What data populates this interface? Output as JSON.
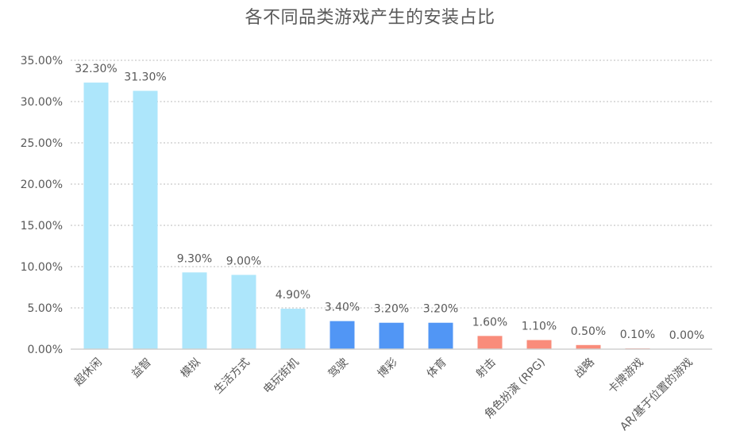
{
  "chart_data": {
    "type": "bar",
    "title": "各不同品类游戏产生的安装占比",
    "xlabel": "",
    "ylabel": "",
    "ylim": [
      0,
      35
    ],
    "y_ticks": [
      "0.00%",
      "5.00%",
      "10.00%",
      "15.00%",
      "20.00%",
      "25.00%",
      "30.00%",
      "35.00%"
    ],
    "y_tick_values": [
      0,
      5,
      10,
      15,
      20,
      25,
      30,
      35
    ],
    "grid": true,
    "legend": "none",
    "categories": [
      "超休闲",
      "益智",
      "模拟",
      "生活方式",
      "电玩街机",
      "驾驶",
      "博彩",
      "体育",
      "射击",
      "角色扮演 (RPG)",
      "战略",
      "卡牌游戏",
      "AR/基于位置的游戏"
    ],
    "values": [
      32.3,
      31.3,
      9.3,
      9.0,
      4.9,
      3.4,
      3.2,
      3.2,
      1.6,
      1.1,
      0.5,
      0.1,
      0.0
    ],
    "value_labels": [
      "32.30%",
      "31.30%",
      "9.30%",
      "9.00%",
      "4.90%",
      "3.40%",
      "3.20%",
      "3.20%",
      "1.60%",
      "1.10%",
      "0.50%",
      "0.10%",
      "0.00%"
    ],
    "bar_colors": [
      "#ade6fb",
      "#ade6fb",
      "#ade6fb",
      "#ade6fb",
      "#ade6fb",
      "#5196f5",
      "#5196f5",
      "#5196f5",
      "#f98c7b",
      "#f98c7b",
      "#f98c7b",
      "#f98c7b",
      "#f98c7b"
    ]
  }
}
